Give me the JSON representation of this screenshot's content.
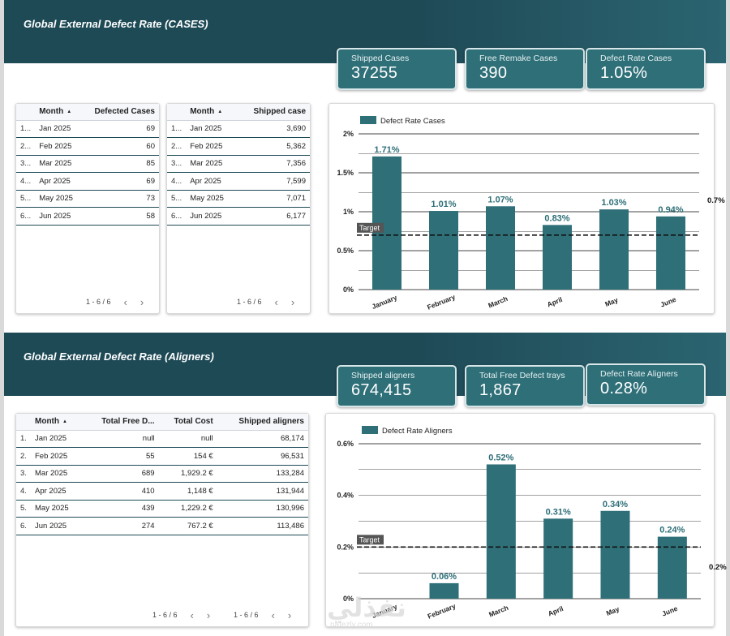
{
  "colors": {
    "band": "#1e4a56",
    "bar": "#2e6f78",
    "kpi": "#2e6f78",
    "label": "#2e6f78"
  },
  "section1": {
    "title": "Global External Defect Rate (CASES)",
    "kpis": [
      {
        "label": "Shipped Cases",
        "value": "37255"
      },
      {
        "label": "Free Remake Cases",
        "value": "390"
      },
      {
        "label": "Defect Rate Cases",
        "value": "1.05%"
      }
    ],
    "table1": {
      "headers": [
        "Month",
        "Defected Cases"
      ],
      "rows": [
        {
          "idx": "1...",
          "month": "Jan 2025",
          "value": "69"
        },
        {
          "idx": "2...",
          "month": "Feb 2025",
          "value": "60"
        },
        {
          "idx": "3...",
          "month": "Mar 2025",
          "value": "85"
        },
        {
          "idx": "4...",
          "month": "Apr 2025",
          "value": "69"
        },
        {
          "idx": "5...",
          "month": "May 2025",
          "value": "73"
        },
        {
          "idx": "6...",
          "month": "Jun 2025",
          "value": "58"
        }
      ],
      "pager": "1 - 6 / 6"
    },
    "table2": {
      "headers": [
        "Month",
        "Shipped case"
      ],
      "rows": [
        {
          "idx": "1...",
          "month": "Jan 2025",
          "value": "3,690"
        },
        {
          "idx": "2...",
          "month": "Feb 2025",
          "value": "5,362"
        },
        {
          "idx": "3...",
          "month": "Mar 2025",
          "value": "7,356"
        },
        {
          "idx": "4...",
          "month": "Apr 2025",
          "value": "7,599"
        },
        {
          "idx": "5...",
          "month": "May 2025",
          "value": "7,071"
        },
        {
          "idx": "6...",
          "month": "Jun 2025",
          "value": "6,177"
        }
      ],
      "pager": "1 - 6 / 6"
    }
  },
  "section2": {
    "title": "Global External Defect Rate (Aligners)",
    "kpis": [
      {
        "label": "Shipped aligners",
        "value": "674,415"
      },
      {
        "label": "Total Free Defect trays",
        "value": "1,867"
      },
      {
        "label": "Defect Rate Aligners",
        "value": "0.28%"
      }
    ],
    "table": {
      "headers": [
        "Month",
        "Total Free D...",
        "Total Cost",
        "Shipped aligners"
      ],
      "rows": [
        {
          "idx": "1.",
          "month": "Jan 2025",
          "free": "null",
          "cost": "null",
          "shipped": "68,174"
        },
        {
          "idx": "2.",
          "month": "Feb 2025",
          "free": "55",
          "cost": "154 €",
          "shipped": "96,531"
        },
        {
          "idx": "3.",
          "month": "Mar 2025",
          "free": "689",
          "cost": "1,929.2 €",
          "shipped": "133,284"
        },
        {
          "idx": "4.",
          "month": "Apr 2025",
          "free": "410",
          "cost": "1,148 €",
          "shipped": "131,944"
        },
        {
          "idx": "5.",
          "month": "May 2025",
          "free": "439",
          "cost": "1,229.2 €",
          "shipped": "130,996"
        },
        {
          "idx": "6.",
          "month": "Jun 2025",
          "free": "274",
          "cost": "767.2 €",
          "shipped": "113,486"
        }
      ],
      "pager1": "1 - 6 / 6",
      "pager2": "1 - 6 / 6"
    }
  },
  "chart_data": [
    {
      "type": "bar",
      "title": "",
      "categories": [
        "January",
        "February",
        "March",
        "April",
        "May",
        "June"
      ],
      "series": [
        {
          "name": "Defect Rate Cases",
          "values": [
            1.71,
            1.01,
            1.07,
            0.83,
            1.03,
            0.94
          ]
        }
      ],
      "value_labels": [
        "1.71%",
        "1.01%",
        "1.07%",
        "0.83%",
        "1.03%",
        "0.94%"
      ],
      "ylim": [
        0,
        2
      ],
      "yticks": [
        0,
        0.5,
        1,
        1.5,
        2
      ],
      "ytick_labels": [
        "0%",
        "0.5%",
        "1%",
        "1.5%",
        "2%"
      ],
      "target": {
        "label": "Target",
        "value": 0.7,
        "value_label": "0.7%"
      },
      "grid": true,
      "legend": "top-left"
    },
    {
      "type": "bar",
      "title": "",
      "categories": [
        "January",
        "February",
        "March",
        "April",
        "May",
        "June"
      ],
      "series": [
        {
          "name": "Defect Rate Aligners",
          "values": [
            0,
            0.06,
            0.52,
            0.31,
            0.34,
            0.24
          ]
        }
      ],
      "value_labels": [
        "",
        "0.06%",
        "0.52%",
        "0.31%",
        "0.34%",
        "0.24%"
      ],
      "ylim": [
        0,
        0.6
      ],
      "yticks": [
        0,
        0.2,
        0.4,
        0.6
      ],
      "ytick_labels": [
        "0%",
        "0.2%",
        "0.4%",
        "0.6%"
      ],
      "target": {
        "label": "Target",
        "value": 0.2,
        "value_label": "0.2%"
      },
      "grid": true,
      "legend": "top-left"
    }
  ],
  "watermark": {
    "text": "نفذلي",
    "sub": "nafezly.com"
  }
}
